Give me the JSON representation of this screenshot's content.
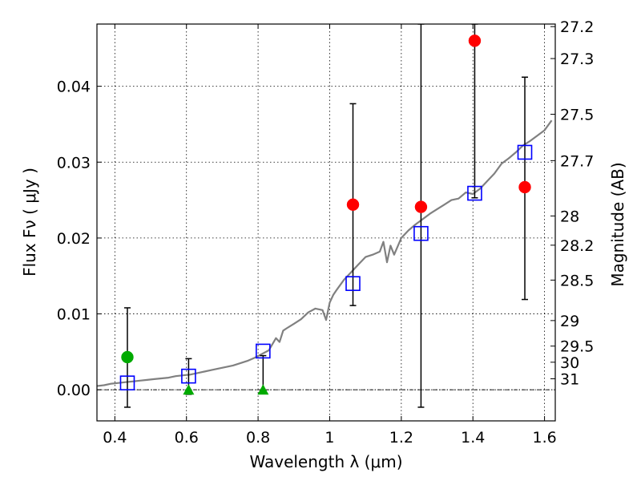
{
  "chart_data": {
    "type": "scatter",
    "xlabel": "Wavelength  λ (μm)",
    "ylabel": "Flux  Fν  ( μJy )",
    "ylabel_right": "Magnitude (AB)",
    "xlim": [
      0.35,
      1.63
    ],
    "ylim": [
      -0.0041,
      0.0482
    ],
    "xticks": [
      {
        "value": 0.4,
        "label": "0.4"
      },
      {
        "value": 0.6,
        "label": "0.6"
      },
      {
        "value": 0.8,
        "label": "0.8"
      },
      {
        "value": 1.0,
        "label": "1"
      },
      {
        "value": 1.2,
        "label": "1.2"
      },
      {
        "value": 1.4,
        "label": "1.4"
      },
      {
        "value": 1.6,
        "label": "1.6"
      }
    ],
    "yticks": [
      {
        "value": 0.0,
        "label": "0.00"
      },
      {
        "value": 0.01,
        "label": "0.01"
      },
      {
        "value": 0.02,
        "label": "0.02"
      },
      {
        "value": 0.03,
        "label": "0.03"
      },
      {
        "value": 0.04,
        "label": "0.04"
      }
    ],
    "right_ticks": [
      {
        "value": 27.2,
        "label": "27.2"
      },
      {
        "value": 27.3,
        "label": "27.3"
      },
      {
        "value": 27.5,
        "label": "27.5"
      },
      {
        "value": 27.7,
        "label": "27.7"
      },
      {
        "value": 28.0,
        "label": "28"
      },
      {
        "value": 28.2,
        "label": "28.2"
      },
      {
        "value": 28.5,
        "label": "28.5"
      },
      {
        "value": 29.0,
        "label": "29"
      },
      {
        "value": 29.5,
        "label": "29.5"
      },
      {
        "value": 30.0,
        "label": "30"
      },
      {
        "value": 31.0,
        "label": "31"
      }
    ],
    "grid": true,
    "zero_line": true,
    "colors": {
      "model": "#808080",
      "detection": "#ff0000",
      "nondetection": "#00aa00",
      "model_photometry": "#0000ff",
      "errorbar": "#000000"
    },
    "series": [
      {
        "kind": "line",
        "x": [
          0.35,
          0.37,
          0.39,
          0.41,
          0.43,
          0.45,
          0.47,
          0.49,
          0.51,
          0.53,
          0.55,
          0.57,
          0.59,
          0.61,
          0.63,
          0.65,
          0.67,
          0.69,
          0.71,
          0.73,
          0.75,
          0.77,
          0.79,
          0.81,
          0.83,
          0.85,
          0.86,
          0.87,
          0.88,
          0.9,
          0.92,
          0.94,
          0.96,
          0.98,
          0.99,
          1.0,
          1.01,
          1.02,
          1.04,
          1.06,
          1.08,
          1.1,
          1.12,
          1.14,
          1.15,
          1.16,
          1.17,
          1.18,
          1.2,
          1.22,
          1.24,
          1.26,
          1.28,
          1.3,
          1.32,
          1.34,
          1.36,
          1.38,
          1.4,
          1.42,
          1.44,
          1.46,
          1.48,
          1.5,
          1.52,
          1.54,
          1.56,
          1.58,
          1.6,
          1.62
        ],
        "y": [
          0.0005,
          0.0006,
          0.0008,
          0.0009,
          0.001,
          0.0011,
          0.0012,
          0.0013,
          0.0014,
          0.0015,
          0.0016,
          0.0018,
          0.0019,
          0.002,
          0.0022,
          0.0024,
          0.0026,
          0.0028,
          0.003,
          0.0032,
          0.0035,
          0.0038,
          0.0042,
          0.0047,
          0.0052,
          0.0068,
          0.0063,
          0.0078,
          0.0081,
          0.0087,
          0.0093,
          0.0102,
          0.0107,
          0.0105,
          0.0092,
          0.0115,
          0.0125,
          0.0132,
          0.0145,
          0.0155,
          0.0165,
          0.0175,
          0.0178,
          0.0182,
          0.0195,
          0.0168,
          0.019,
          0.0178,
          0.02,
          0.021,
          0.0218,
          0.0225,
          0.0232,
          0.0238,
          0.0244,
          0.025,
          0.0252,
          0.026,
          0.0258,
          0.0265,
          0.0275,
          0.0285,
          0.0298,
          0.0305,
          0.0313,
          0.0322,
          0.0328,
          0.0335,
          0.0342,
          0.0355
        ]
      },
      {
        "kind": "points",
        "marker": "circle",
        "x": [
          1.065,
          1.255,
          1.405,
          1.545
        ],
        "y": [
          0.0244,
          0.0241,
          0.046,
          0.0267
        ]
      },
      {
        "kind": "points",
        "marker": "circle",
        "x": [
          0.435
        ],
        "y": [
          0.0043
        ]
      },
      {
        "kind": "points",
        "marker": "triangle",
        "x": [
          0.606,
          0.814
        ],
        "y": [
          0.0,
          0.0
        ]
      },
      {
        "kind": "points",
        "marker": "open-square",
        "x": [
          0.435,
          0.606,
          0.814,
          1.065,
          1.255,
          1.405,
          1.545
        ],
        "y": [
          0.0009,
          0.0018,
          0.0051,
          0.014,
          0.0206,
          0.0259,
          0.0313
        ]
      },
      {
        "kind": "errorbars",
        "x": [
          0.435,
          0.606,
          0.814,
          1.065,
          1.255,
          1.405,
          1.545
        ],
        "low": [
          -0.0023,
          -0.0006,
          -0.0005,
          0.0111,
          -0.0023,
          0.0253,
          0.0119
        ],
        "high": [
          0.0108,
          0.0041,
          0.0045,
          0.0377,
          0.0482,
          0.0482,
          0.0412
        ]
      }
    ]
  }
}
